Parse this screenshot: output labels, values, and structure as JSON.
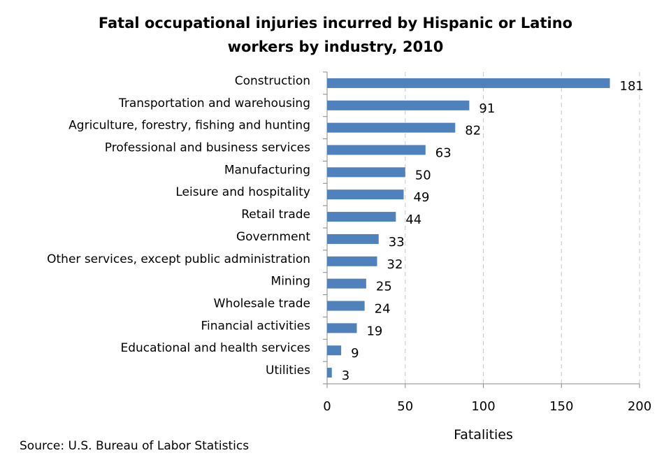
{
  "chart_data": {
    "type": "bar",
    "orientation": "horizontal",
    "title_lines": [
      "Fatal occupational injuries incurred by Hispanic or Latino",
      "workers by industry, 2010"
    ],
    "categories": [
      "Construction",
      "Transportation and warehousing",
      "Agriculture, forestry, fishing and hunting",
      "Professional and business services",
      "Manufacturing",
      "Leisure and hospitality",
      "Retail trade",
      "Government",
      "Other services, except public administration",
      "Mining",
      "Wholesale trade",
      "Financial activities",
      "Educational and health services",
      "Utilities"
    ],
    "values": [
      181,
      91,
      82,
      63,
      50,
      49,
      44,
      33,
      32,
      25,
      24,
      19,
      9,
      3
    ],
    "xlabel": "Fatalities",
    "ylabel": "",
    "xlim": [
      0,
      200
    ],
    "xticks": [
      0,
      50,
      100,
      150,
      200
    ],
    "grid": "vertical dashed",
    "bar_color": "#4F81BD"
  },
  "source": "Source: U.S. Bureau of Labor Statistics"
}
